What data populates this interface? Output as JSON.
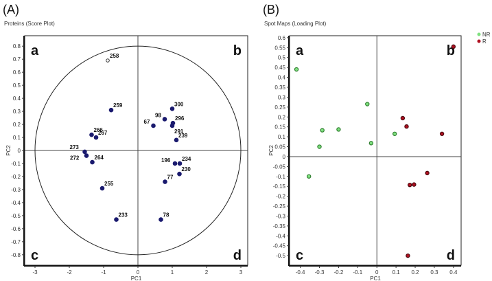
{
  "chart_data": [
    {
      "type": "scatter",
      "panel_label": "(A)",
      "title": "Proteins (Score Plot)",
      "xlabel": "PC1",
      "ylabel": "PC2",
      "xlim": [
        -3.3,
        3.2
      ],
      "ylim": [
        -0.88,
        0.88
      ],
      "xticks": [
        -3,
        -2,
        -1,
        0,
        1,
        2,
        3
      ],
      "yticks": [
        0.8,
        0.7,
        0.6,
        0.5,
        0.4,
        0.3,
        0.2,
        0.1,
        0,
        -0.1,
        -0.2,
        -0.3,
        -0.4,
        -0.5,
        -0.6,
        -0.7,
        -0.8
      ],
      "quadrants": [
        "a",
        "b",
        "c",
        "d"
      ],
      "reference_ellipse": {
        "rx": 3,
        "ry": 0.8
      },
      "grid": false,
      "point_color": "#1a1a6e",
      "points": [
        {
          "label": "258",
          "x": -0.88,
          "y": 0.69,
          "open": true
        },
        {
          "label": "259",
          "x": -0.78,
          "y": 0.31
        },
        {
          "label": "266",
          "x": -1.35,
          "y": 0.12
        },
        {
          "label": "267",
          "x": -1.22,
          "y": 0.1
        },
        {
          "label": "273",
          "x": -1.55,
          "y": -0.01
        },
        {
          "label": "272",
          "x": -1.5,
          "y": -0.04
        },
        {
          "label": "264",
          "x": -1.33,
          "y": -0.09
        },
        {
          "label": "255",
          "x": -1.04,
          "y": -0.29
        },
        {
          "label": "233",
          "x": -0.63,
          "y": -0.53
        },
        {
          "label": "300",
          "x": 1.0,
          "y": 0.32
        },
        {
          "label": "98",
          "x": 0.78,
          "y": 0.24
        },
        {
          "label": "296",
          "x": 1.02,
          "y": 0.21
        },
        {
          "label": "291",
          "x": 1.0,
          "y": 0.19
        },
        {
          "label": "67",
          "x": 0.45,
          "y": 0.19
        },
        {
          "label": "239",
          "x": 1.12,
          "y": 0.08
        },
        {
          "label": "196",
          "x": 1.08,
          "y": -0.1
        },
        {
          "label": "234",
          "x": 1.22,
          "y": -0.1
        },
        {
          "label": "230",
          "x": 1.21,
          "y": -0.18
        },
        {
          "label": "77",
          "x": 0.79,
          "y": -0.24
        },
        {
          "label": "78",
          "x": 0.67,
          "y": -0.53
        }
      ]
    },
    {
      "type": "scatter",
      "panel_label": "(B)",
      "title": "Spot Maps (Loading Plot)",
      "xlabel": "PC1",
      "ylabel": "PC2",
      "xlim": [
        -0.456,
        0.44
      ],
      "ylim": [
        -0.548,
        0.61
      ],
      "xticks": [
        -0.4,
        -0.3,
        -0.2,
        -0.1,
        0,
        0.1,
        0.2,
        0.3,
        0.4
      ],
      "yticks": [
        0.6,
        0.55,
        0.5,
        0.45,
        0.4,
        0.35,
        0.3,
        0.25,
        0.2,
        0.15,
        0.1,
        0.05,
        0,
        -0.05,
        -0.1,
        -0.15,
        -0.2,
        -0.25,
        -0.3,
        -0.35,
        -0.4,
        -0.45,
        -0.5
      ],
      "quadrants": [
        "a",
        "b",
        "c",
        "d"
      ],
      "grid": false,
      "legend_position": "top-right, outside",
      "series": [
        {
          "name": "NR",
          "color": "#7fe07f",
          "stroke": "#2e7d2e",
          "points": [
            {
              "x": -0.42,
              "y": 0.44
            },
            {
              "x": -0.05,
              "y": 0.265
            },
            {
              "x": -0.285,
              "y": 0.133
            },
            {
              "x": -0.2,
              "y": 0.137
            },
            {
              "x": -0.3,
              "y": 0.05
            },
            {
              "x": -0.03,
              "y": 0.068
            },
            {
              "x": 0.093,
              "y": 0.115
            },
            {
              "x": -0.355,
              "y": -0.1
            }
          ]
        },
        {
          "name": "R",
          "color": "#b01020",
          "stroke": "#4a0a10",
          "points": [
            {
              "x": 0.4,
              "y": 0.555
            },
            {
              "x": 0.135,
              "y": 0.194
            },
            {
              "x": 0.155,
              "y": 0.152
            },
            {
              "x": 0.34,
              "y": 0.115
            },
            {
              "x": 0.263,
              "y": -0.083
            },
            {
              "x": 0.172,
              "y": -0.143
            },
            {
              "x": 0.194,
              "y": -0.141
            },
            {
              "x": 0.162,
              "y": -0.5
            }
          ]
        }
      ]
    }
  ]
}
